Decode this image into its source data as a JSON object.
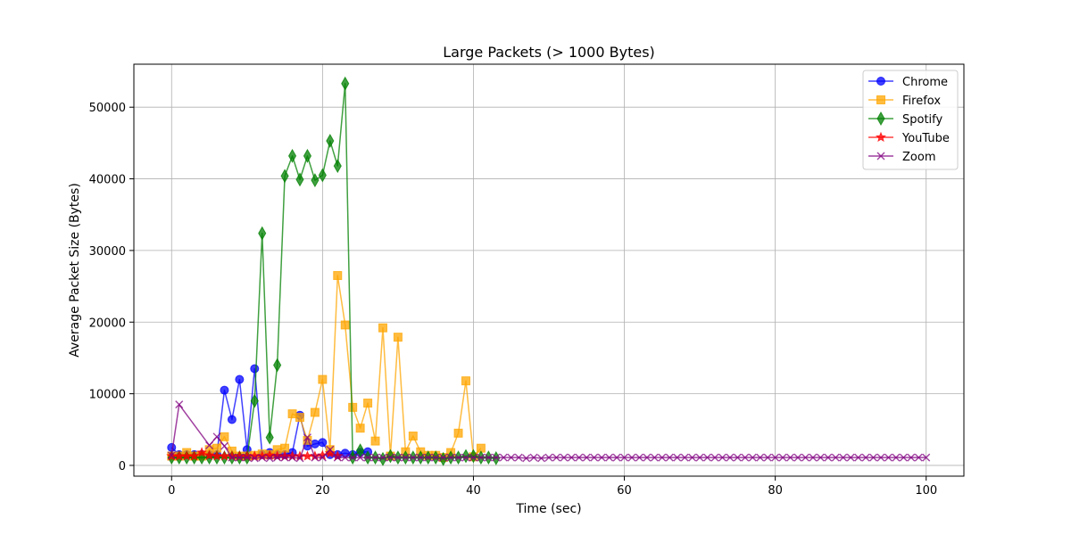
{
  "chart_data": {
    "type": "line",
    "title": "Large Packets (> 1000 Bytes)",
    "xlabel": "Time (sec)",
    "ylabel": "Average Packet Size (Bytes)",
    "xlim": [
      -5,
      105
    ],
    "ylim": [
      -1500,
      56000
    ],
    "xticks": [
      0,
      20,
      40,
      60,
      80,
      100
    ],
    "yticks": [
      0,
      10000,
      20000,
      30000,
      40000,
      50000
    ],
    "grid": true,
    "legend_position": "top-right",
    "series": [
      {
        "name": "Chrome",
        "color": "#0000ff",
        "marker": "circle",
        "x": [
          0,
          1,
          2,
          3,
          4,
          5,
          6,
          7,
          8,
          9,
          10,
          11,
          12,
          13,
          14,
          15,
          16,
          17,
          18,
          19,
          20,
          21,
          22,
          23,
          24,
          25,
          26
        ],
        "y": [
          2500,
          1500,
          1500,
          1500,
          1500,
          1500,
          1500,
          10500,
          6400,
          12000,
          2200,
          13500,
          1500,
          1800,
          1500,
          1500,
          1800,
          7000,
          2700,
          3000,
          3200,
          1500,
          1500,
          1700,
          1500,
          1800,
          1900
        ]
      },
      {
        "name": "Firefox",
        "color": "#ffa500",
        "marker": "square",
        "x": [
          0,
          1,
          2,
          3,
          4,
          5,
          6,
          7,
          8,
          9,
          10,
          11,
          12,
          13,
          14,
          15,
          16,
          17,
          18,
          19,
          20,
          21,
          22,
          23,
          24,
          25,
          26,
          27,
          28,
          29,
          30,
          31,
          32,
          33,
          34,
          35,
          36,
          37,
          38,
          39,
          40,
          41
        ],
        "y": [
          1300,
          1300,
          1800,
          1300,
          1300,
          2200,
          2400,
          4000,
          2000,
          1300,
          1300,
          1400,
          1600,
          1500,
          2200,
          2400,
          7200,
          6700,
          3500,
          7400,
          12000,
          2200,
          26500,
          19600,
          8100,
          5200,
          8700,
          3400,
          19200,
          1300,
          17900,
          1900,
          4100,
          1900,
          1400,
          1400,
          1100,
          1800,
          4500,
          11800,
          1200,
          2400
        ]
      },
      {
        "name": "Spotify",
        "color": "#008000",
        "marker": "diamond",
        "x": [
          0,
          1,
          2,
          3,
          4,
          5,
          6,
          7,
          8,
          9,
          10,
          11,
          12,
          13,
          14,
          15,
          16,
          17,
          18,
          19,
          20,
          21,
          22,
          23,
          24,
          25,
          26,
          27,
          28,
          29,
          30,
          31,
          32,
          33,
          34,
          35,
          36,
          37,
          38,
          39,
          40,
          41,
          42,
          43
        ],
        "y": [
          1100,
          1100,
          1100,
          1100,
          1100,
          1100,
          1100,
          1100,
          1100,
          1100,
          1100,
          9000,
          32400,
          3900,
          14000,
          40400,
          43200,
          39900,
          43200,
          39800,
          40500,
          45300,
          41800,
          53300,
          1100,
          2100,
          1100,
          1100,
          900,
          1300,
          1100,
          1100,
          1100,
          1100,
          1100,
          1100,
          900,
          1100,
          1100,
          1300,
          1300,
          1100,
          1100,
          1000
        ]
      },
      {
        "name": "YouTube",
        "color": "#ff0000",
        "marker": "star",
        "x": [
          0,
          1,
          2,
          3,
          4,
          5,
          6,
          7,
          8,
          9,
          10,
          11,
          12,
          13,
          14,
          15,
          16,
          17,
          18,
          19,
          20,
          21,
          22
        ],
        "y": [
          1300,
          1300,
          1300,
          1300,
          1800,
          1400,
          1300,
          1300,
          1300,
          1300,
          1300,
          1300,
          1300,
          1400,
          1300,
          1300,
          1300,
          1300,
          1300,
          1300,
          1400,
          1700,
          1300
        ]
      },
      {
        "name": "Zoom",
        "color": "#800080",
        "marker": "x",
        "x": [
          0,
          1,
          5,
          6,
          7,
          8,
          9,
          10,
          11,
          12,
          13,
          14,
          15,
          16,
          17,
          18,
          19,
          20,
          21,
          22,
          23,
          24,
          25,
          26,
          27,
          28,
          29,
          30,
          31,
          32,
          33,
          34,
          35,
          36,
          37,
          38,
          39,
          40,
          41,
          42,
          43,
          44,
          45,
          46,
          47,
          48,
          49,
          50,
          51,
          52,
          53,
          54,
          55,
          56,
          57,
          58,
          59,
          60,
          61,
          62,
          63,
          64,
          65,
          66,
          67,
          68,
          69,
          70,
          71,
          72,
          73,
          74,
          75,
          76,
          77,
          78,
          79,
          80,
          81,
          82,
          83,
          84,
          85,
          86,
          87,
          88,
          89,
          90,
          91,
          92,
          93,
          94,
          95,
          96,
          97,
          98,
          99,
          100
        ],
        "y": [
          1400,
          8500,
          2800,
          4000,
          2700,
          1100,
          1100,
          1100,
          1000,
          1100,
          1000,
          1100,
          1100,
          1100,
          1000,
          3900,
          1100,
          1100,
          2200,
          1100,
          1100,
          1100,
          1100,
          1100,
          1100,
          1100,
          1100,
          1100,
          1100,
          1100,
          1100,
          1100,
          1100,
          1100,
          1100,
          1100,
          1100,
          1100,
          1100,
          1100,
          1100,
          1100,
          1100,
          1100,
          1000,
          1100,
          1000,
          1100,
          1100,
          1100,
          1100,
          1100,
          1100,
          1100,
          1100,
          1100,
          1100,
          1100,
          1100,
          1100,
          1100,
          1100,
          1100,
          1100,
          1100,
          1100,
          1100,
          1100,
          1100,
          1100,
          1100,
          1100,
          1100,
          1100,
          1100,
          1100,
          1100,
          1100,
          1100,
          1100,
          1100,
          1100,
          1100,
          1100,
          1100,
          1100,
          1100,
          1100,
          1100,
          1100,
          1100,
          1100,
          1100,
          1100,
          1100,
          1100,
          1100,
          1100
        ]
      }
    ]
  }
}
